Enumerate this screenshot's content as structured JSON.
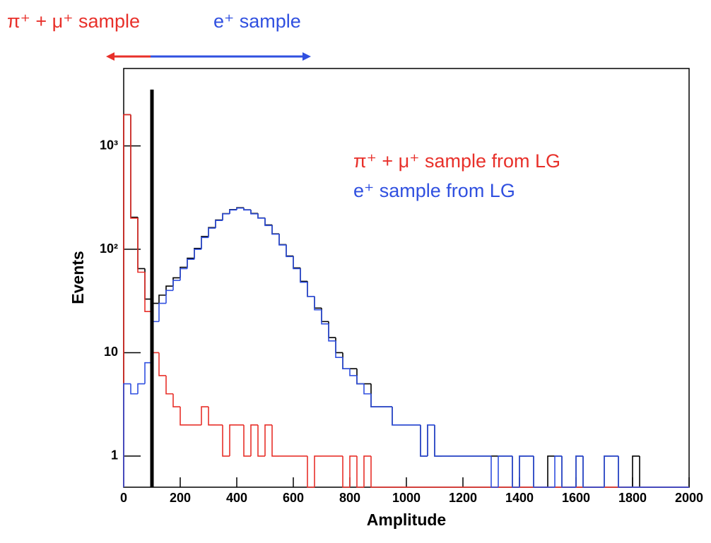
{
  "chart_data": {
    "type": "histogram",
    "annotations": [
      {
        "text": "π⁺ + μ⁺ sample",
        "color": "#e8302a"
      },
      {
        "text": "e⁺ sample",
        "color": "#3050e0"
      }
    ],
    "x_label": "Amplitude",
    "y_label": "Events",
    "xlim": [
      0,
      2000
    ],
    "xticks": [
      0,
      200,
      400,
      600,
      800,
      1000,
      1200,
      1400,
      1600,
      1800,
      2000
    ],
    "ylim": [
      0.5,
      5600
    ],
    "log_y": true,
    "yticks": [
      1,
      10,
      {
        "value": 100,
        "label": "10²"
      },
      {
        "value": 1000,
        "label": "10³"
      }
    ],
    "threshold": {
      "x": 100,
      "y": 3500,
      "color": "#000000"
    },
    "bins": [
      0,
      25,
      50,
      75,
      100,
      125,
      150,
      175,
      200,
      225,
      250,
      275,
      300,
      325,
      350,
      375,
      400,
      425,
      450,
      475,
      500,
      525,
      550,
      575,
      600,
      625,
      650,
      675,
      700,
      725,
      750,
      775,
      800,
      825,
      850,
      875,
      900,
      925,
      950,
      975,
      1000,
      1025,
      1050,
      1075,
      1100,
      1125,
      1150,
      1175,
      1200,
      1225,
      1250,
      1275,
      1300,
      1325,
      1350,
      1375,
      1400,
      1425,
      1450,
      1475,
      1500,
      1525,
      1550,
      1575,
      1600,
      1625,
      1650,
      1675,
      1700,
      1725,
      1750,
      1775,
      1800,
      1825,
      1850,
      1875,
      1900,
      1925,
      1950,
      1975,
      2000
    ],
    "series": [
      {
        "color": "#000000",
        "values": [
          2005,
          204,
          65,
          33,
          30,
          36,
          44,
          53,
          67,
          82,
          102,
          133,
          162,
          192,
          221,
          242,
          252,
          241,
          222,
          201,
          172,
          141,
          111,
          86,
          66,
          49,
          35,
          27,
          20,
          14,
          10,
          7,
          7,
          5,
          5,
          3,
          3,
          3,
          2,
          2,
          2,
          2,
          1,
          2,
          1,
          1,
          1,
          1,
          1,
          1,
          1,
          1,
          1,
          1,
          1,
          0,
          1,
          1,
          0,
          0,
          1,
          1,
          0,
          0,
          1,
          0,
          0,
          0,
          1,
          1,
          0,
          0,
          1,
          0,
          0,
          0,
          0,
          0,
          0,
          0
        ]
      },
      {
        "name": "π⁺ + μ⁺ sample from LG",
        "color": "#e8302a",
        "values": [
          2000,
          200,
          60,
          25,
          10,
          6,
          4,
          3,
          2,
          2,
          2,
          3,
          2,
          2,
          1,
          2,
          2,
          1,
          2,
          1,
          2,
          1,
          1,
          1,
          1,
          1,
          0,
          1,
          1,
          1,
          1,
          0,
          1,
          0,
          1,
          0,
          0,
          0,
          0,
          0,
          0,
          0,
          0,
          0,
          0,
          0,
          0,
          0,
          0,
          0,
          0,
          0,
          0,
          0,
          0,
          0,
          0,
          0,
          0,
          0,
          0,
          0,
          0,
          0,
          0,
          0,
          0,
          0,
          0,
          0,
          0,
          0,
          0,
          0,
          0,
          0,
          0,
          0,
          0,
          0
        ]
      },
      {
        "name": "e⁺ sample from LG",
        "color": "#3050e0",
        "values": [
          5,
          4,
          5,
          8,
          20,
          30,
          40,
          50,
          65,
          80,
          100,
          130,
          160,
          190,
          220,
          240,
          250,
          240,
          220,
          200,
          170,
          140,
          110,
          85,
          65,
          48,
          35,
          26,
          19,
          13,
          9,
          7,
          6,
          5,
          4,
          3,
          3,
          3,
          2,
          2,
          2,
          2,
          1,
          2,
          1,
          1,
          1,
          1,
          1,
          1,
          1,
          1,
          0,
          1,
          1,
          0,
          1,
          1,
          0,
          0,
          0,
          1,
          0,
          0,
          1,
          0,
          0,
          0,
          1,
          1,
          0,
          0,
          0,
          0,
          0,
          0,
          0,
          0,
          0,
          0
        ]
      }
    ]
  }
}
